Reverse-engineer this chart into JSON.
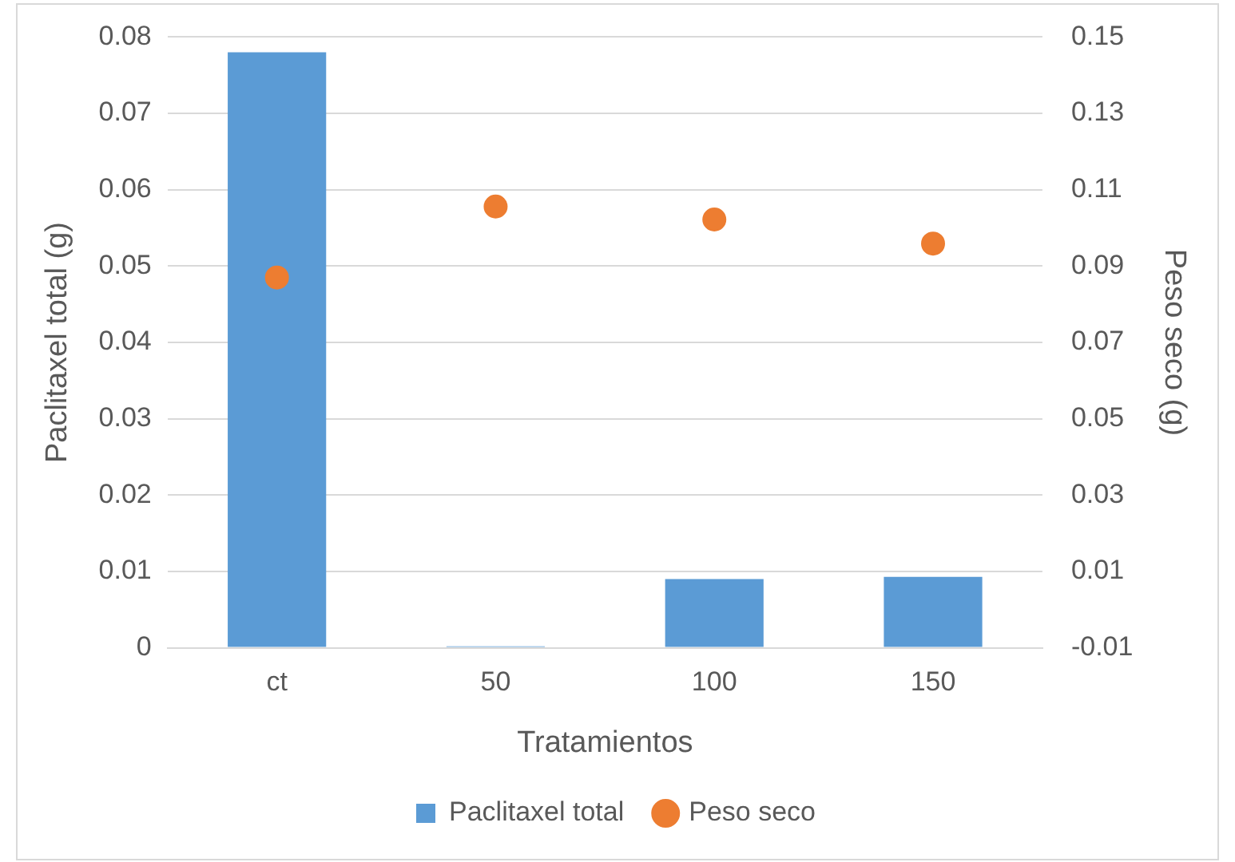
{
  "chart_data": {
    "type": "bar",
    "xlabel": "Tratamientos",
    "ylabel": "Paclitaxel total (g)",
    "y2label": "Peso seco (g)",
    "categories": [
      "ct",
      "50",
      "100",
      "150"
    ],
    "series": [
      {
        "name": "Paclitaxel total",
        "color": "#5b9bd5",
        "values": [
          0.078,
          0.0002,
          0.009,
          0.0093
        ]
      },
      {
        "name": "Peso seco",
        "type": "scatter",
        "axis": "y2",
        "color": "#ed7d31",
        "values": [
          0.087,
          0.1056,
          0.1022,
          0.0959
        ]
      }
    ],
    "ylim": [
      0,
      0.08
    ],
    "yticks": [
      0,
      0.01,
      0.02,
      0.03,
      0.04,
      0.05,
      0.06,
      0.07,
      0.08
    ],
    "y2lim": [
      -0.01,
      0.15
    ],
    "y2ticks": [
      -0.01,
      0.01,
      0.03,
      0.05,
      0.07,
      0.09,
      0.11,
      0.13,
      0.15
    ],
    "grid": "y",
    "legend": "bottom",
    "marker": "circle"
  }
}
